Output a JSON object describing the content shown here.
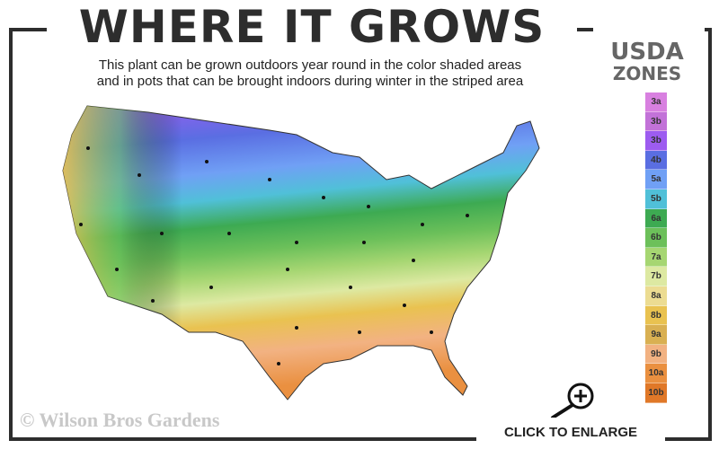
{
  "header": {
    "title": "WHERE IT GROWS",
    "subtitle_line1": "This plant can be grown outdoors year round in the color shaded areas",
    "subtitle_line2": "and in pots that can be brought indoors during winter in the striped area"
  },
  "legend": {
    "title_line1": "USDA",
    "title_line2": "ZONES",
    "zones": [
      {
        "label": "3a",
        "color": "#d880e0"
      },
      {
        "label": "3b",
        "color": "#c272d8"
      },
      {
        "label": "3b",
        "color": "#9d5cf0"
      },
      {
        "label": "4b",
        "color": "#5a6ee2"
      },
      {
        "label": "5a",
        "color": "#70a0f5"
      },
      {
        "label": "5b",
        "color": "#50c0d8"
      },
      {
        "label": "6a",
        "color": "#3daa52"
      },
      {
        "label": "6b",
        "color": "#6cc05a"
      },
      {
        "label": "7a",
        "color": "#a6d672"
      },
      {
        "label": "7b",
        "color": "#dde9a2"
      },
      {
        "label": "8a",
        "color": "#ecdc92"
      },
      {
        "label": "8b",
        "color": "#e9c250"
      },
      {
        "label": "9a",
        "color": "#d9b052"
      },
      {
        "label": "9b",
        "color": "#f2b282"
      },
      {
        "label": "10a",
        "color": "#ea9040"
      },
      {
        "label": "10b",
        "color": "#e07828"
      }
    ]
  },
  "footer": {
    "copyright": "© Wilson Bros Gardens",
    "enlarge_label": "CLICK TO ENLARGE"
  },
  "icons": {
    "enlarge": "magnifier-plus-icon"
  }
}
